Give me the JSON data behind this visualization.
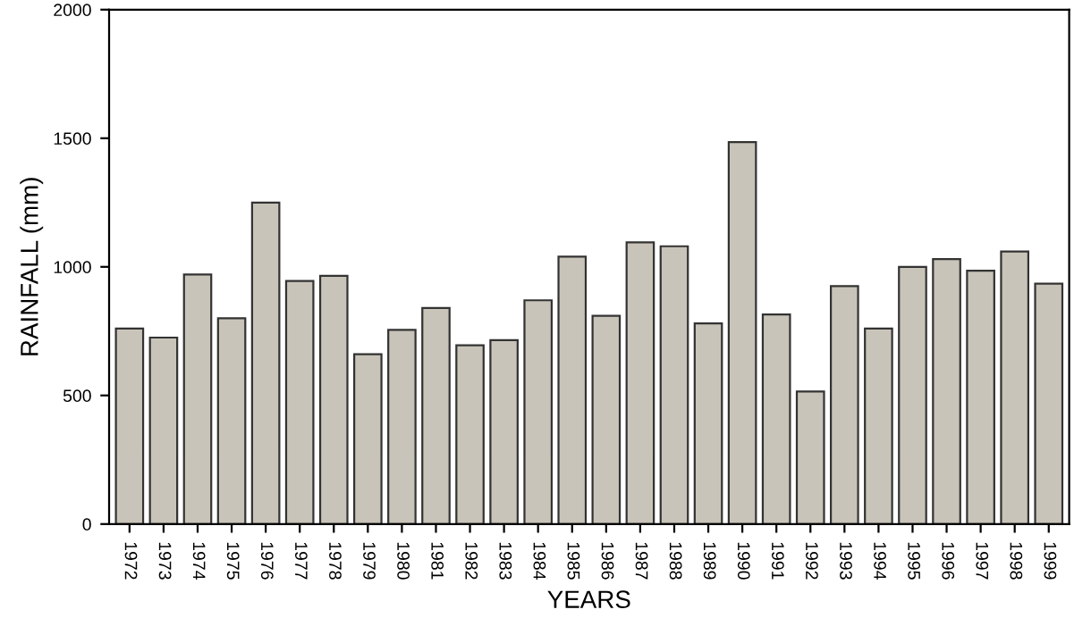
{
  "chart_data": {
    "type": "bar",
    "xlabel": "YEARS",
    "ylabel": "RAINFALL (mm)",
    "categories": [
      "1972",
      "1973",
      "1974",
      "1975",
      "1976",
      "1977",
      "1978",
      "1979",
      "1980",
      "1981",
      "1982",
      "1983",
      "1984",
      "1985",
      "1986",
      "1987",
      "1988",
      "1989",
      "1990",
      "1991",
      "1992",
      "1993",
      "1994",
      "1995",
      "1996",
      "1997",
      "1998",
      "1999"
    ],
    "values": [
      760,
      725,
      970,
      800,
      1250,
      945,
      965,
      660,
      755,
      840,
      695,
      715,
      870,
      1040,
      810,
      1095,
      1080,
      780,
      1485,
      815,
      515,
      925,
      760,
      1000,
      1030,
      985,
      1060,
      935
    ],
    "color": "#c9c4b9",
    "ylim": [
      0,
      2000
    ],
    "yticks": [
      0,
      500,
      1000,
      1500,
      2000
    ],
    "grid": false,
    "legend": false
  }
}
